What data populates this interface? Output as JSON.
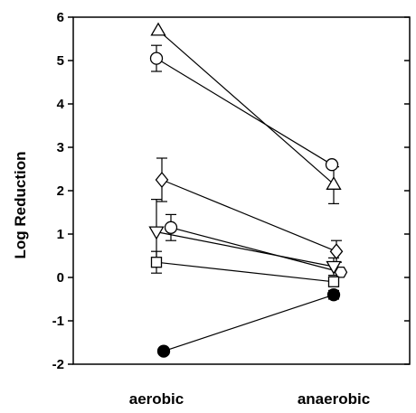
{
  "chart_data": {
    "type": "line",
    "title": "",
    "xlabel": "",
    "ylabel": "Log Reduction",
    "categories": [
      "aerobic",
      "anaerobic"
    ],
    "ylim": [
      -2,
      6
    ],
    "yticks": [
      -2,
      -1,
      0,
      1,
      2,
      3,
      4,
      5,
      6
    ],
    "grid": false,
    "legend": "none",
    "series": [
      {
        "marker": "triangle-up",
        "filled": false,
        "values": [
          5.7,
          2.15
        ],
        "err_lo": [
          0,
          0.45
        ],
        "err_hi": [
          0,
          0.4
        ]
      },
      {
        "marker": "circle",
        "filled": false,
        "values": [
          5.05,
          2.6
        ],
        "err_lo": [
          0.3,
          0.05
        ],
        "err_hi": [
          0.3,
          0.05
        ]
      },
      {
        "marker": "diamond",
        "filled": false,
        "values": [
          2.25,
          0.6
        ],
        "err_lo": [
          0.5,
          0.25
        ],
        "err_hi": [
          0.5,
          0.25
        ]
      },
      {
        "marker": "circle",
        "filled": false,
        "values": [
          1.15,
          null
        ],
        "err_lo": [
          0.3,
          null
        ],
        "err_hi": [
          0.3,
          null
        ]
      },
      {
        "marker": "hexagon",
        "filled": false,
        "values": [
          null,
          0.12
        ],
        "err_lo": [
          null,
          0
        ],
        "err_hi": [
          null,
          0
        ]
      },
      {
        "marker": "triangle-down",
        "filled": false,
        "values": [
          1.05,
          0.25
        ],
        "err_lo": [
          0.75,
          0.2
        ],
        "err_hi": [
          0.75,
          0.2
        ]
      },
      {
        "marker": "square",
        "filled": false,
        "values": [
          0.35,
          -0.1
        ],
        "err_lo": [
          0.25,
          0.05
        ],
        "err_hi": [
          0.25,
          0.05
        ]
      },
      {
        "marker": "circle",
        "filled": true,
        "values": [
          -1.7,
          -0.4
        ],
        "err_lo": [
          0,
          0.1
        ],
        "err_hi": [
          0,
          0.1
        ]
      }
    ],
    "connector": {
      "from": [
        3,
        0
      ],
      "to": [
        4,
        1
      ]
    }
  }
}
